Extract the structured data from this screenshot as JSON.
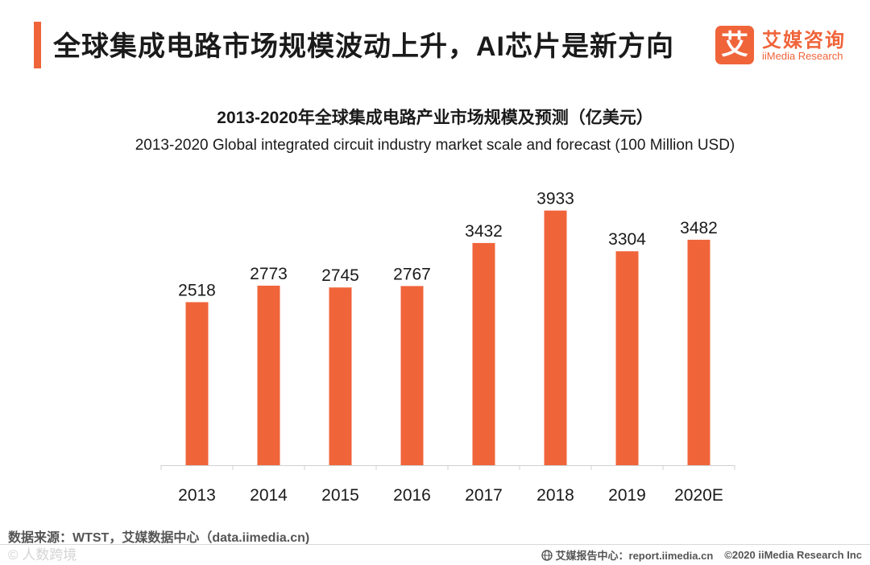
{
  "header": {
    "headline": "全球集成电路市场规模波动上升，AI芯片是新方向",
    "logo_mark": "艾",
    "logo_cn": "艾媒咨询",
    "logo_en": "iiMedia Research"
  },
  "chart_data": {
    "type": "bar",
    "title": "2013-2020年全球集成电路产业市场规模及预测（亿美元）",
    "subtitle": "2013-2020 Global integrated circuit industry market scale and forecast (100 Million USD)",
    "categories": [
      "2013",
      "2014",
      "2015",
      "2016",
      "2017",
      "2018",
      "2019",
      "2020E"
    ],
    "values": [
      2518,
      2773,
      2745,
      2767,
      3432,
      3933,
      3304,
      3482
    ],
    "data_labels": [
      "2518",
      "2773",
      "2745",
      "2767",
      "3432",
      "3933",
      "3304",
      "3482"
    ],
    "xlabel": "",
    "ylabel": "",
    "ylim": [
      0,
      4500
    ],
    "grid": false,
    "bar_color": "#f0643a"
  },
  "footer": {
    "source": "数据来源：WTST，艾媒数据中心（data.iimedia.cn)",
    "watermark": "© 人数跨境",
    "report_center": "艾媒报告中心：report.iimedia.cn",
    "copyright": "©2020  iiMedia Research  Inc"
  }
}
